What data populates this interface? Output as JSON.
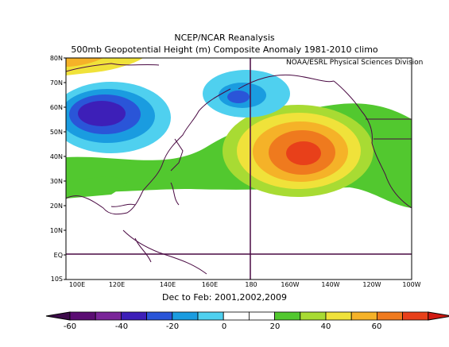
{
  "title_line1": "NCEP/NCAR Reanalysis",
  "title_line2": "500mb Geopotential Height (m) Composite Anomaly 1981-2010 climo",
  "credit": "NOAA/ESRL Physical Sciences Division",
  "subtitle": "Dec to Feb: 2001,2002,2009",
  "lat_labels": [
    "80N",
    "70N",
    "60N",
    "50N",
    "40N",
    "30N",
    "20N",
    "10N",
    "EQ",
    "10S"
  ],
  "lon_labels": [
    "100E",
    "120E",
    "140E",
    "160E",
    "180",
    "160W",
    "140W",
    "120W",
    "100W"
  ],
  "colorbar_labels": [
    "-60",
    "-40",
    "-20",
    "0",
    "20",
    "40",
    "60"
  ],
  "colors": {
    "min_arrow": "#3d0b4a",
    "bins": [
      "#5b0d73",
      "#7a2599",
      "#3d1fb8",
      "#2a55d8",
      "#1a9ce0",
      "#4fd0ef",
      "#ffffff",
      "#ffffff",
      "#52c82f",
      "#a8db33",
      "#f0e23a",
      "#f5b228",
      "#ef7a1e",
      "#e8401a"
    ],
    "max_arrow": "#d11a12",
    "coast": "#4a0a43"
  }
}
